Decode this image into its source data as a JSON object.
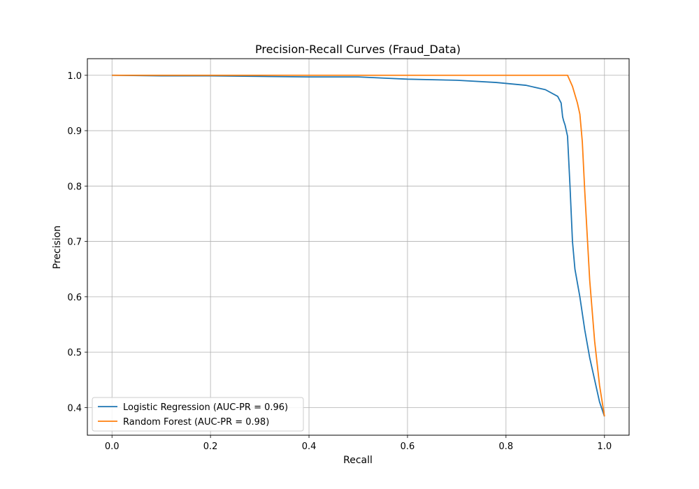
{
  "chart_data": {
    "type": "line",
    "title": "Precision-Recall Curves (Fraud_Data)",
    "xlabel": "Recall",
    "ylabel": "Precision",
    "xlim": [
      -0.05,
      1.05
    ],
    "ylim": [
      0.35,
      1.03
    ],
    "xticks": [
      0.0,
      0.2,
      0.4,
      0.6,
      0.8,
      1.0
    ],
    "xtick_labels": [
      "0.0",
      "0.2",
      "0.4",
      "0.6",
      "0.8",
      "1.0"
    ],
    "yticks": [
      0.4,
      0.5,
      0.6,
      0.7,
      0.8,
      0.9,
      1.0
    ],
    "ytick_labels": [
      "0.4",
      "0.5",
      "0.6",
      "0.7",
      "0.8",
      "0.9",
      "1.0"
    ],
    "grid": true,
    "legend_position": "lower-left",
    "series": [
      {
        "name": "Logistic Regression (AUC-PR = 0.96)",
        "color": "#1f77b4",
        "x": [
          0.0,
          0.1,
          0.2,
          0.3,
          0.4,
          0.5,
          0.55,
          0.6,
          0.7,
          0.78,
          0.84,
          0.88,
          0.905,
          0.912,
          0.915,
          0.917,
          0.92,
          0.925,
          0.93,
          0.935,
          0.94,
          0.95,
          0.96,
          0.97,
          0.98,
          0.99,
          1.0
        ],
        "y": [
          1.0,
          0.999,
          0.999,
          0.998,
          0.997,
          0.997,
          0.995,
          0.993,
          0.991,
          0.987,
          0.982,
          0.974,
          0.962,
          0.95,
          0.925,
          0.918,
          0.91,
          0.89,
          0.8,
          0.7,
          0.65,
          0.6,
          0.54,
          0.49,
          0.45,
          0.41,
          0.384
        ]
      },
      {
        "name": "Random Forest (AUC-PR = 0.98)",
        "color": "#ff7f0e",
        "x": [
          0.0,
          0.2,
          0.4,
          0.6,
          0.8,
          0.9,
          0.925,
          0.935,
          0.945,
          0.95,
          0.955,
          0.96,
          0.965,
          0.97,
          0.98,
          0.99,
          1.0
        ],
        "y": [
          1.0,
          1.0,
          1.0,
          1.0,
          1.0,
          1.0,
          1.0,
          0.98,
          0.95,
          0.93,
          0.88,
          0.79,
          0.71,
          0.63,
          0.52,
          0.44,
          0.384
        ]
      }
    ]
  }
}
